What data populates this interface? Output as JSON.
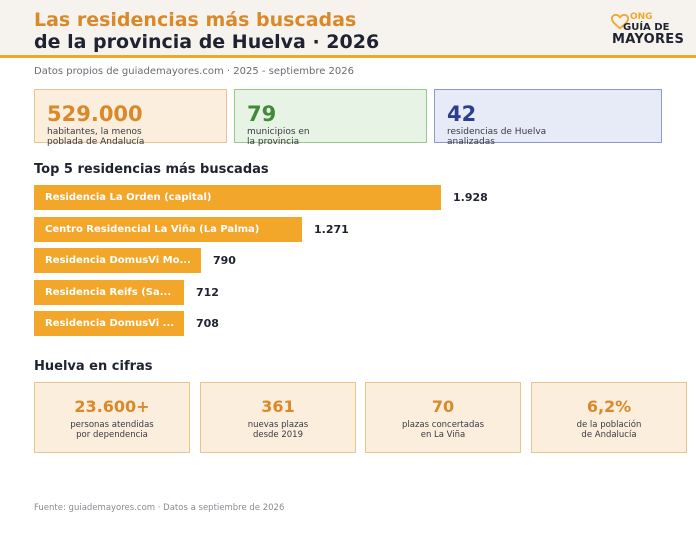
{
  "header": {
    "title_line1": "Las residencias más buscadas",
    "title_line2": "de la provincia de Huelva · 2026",
    "logo": {
      "ong": "ONG",
      "guia": "GUÍA DE",
      "mayores": "MAYORES",
      "icon": "heart-icon"
    }
  },
  "subtitle": "Datos propios de guiademayores.com · 2025 - septiembre 2026",
  "stats": [
    {
      "value": "529.000",
      "desc_line1": "habitantes, la menos",
      "desc_line2": "poblada de Andalucía"
    },
    {
      "value": "79",
      "desc_line1": "municipios en",
      "desc_line2": "la provincia"
    },
    {
      "value": "42",
      "desc_line1": "residencias de Huelva",
      "desc_line2": "analizadas"
    }
  ],
  "chart_data": {
    "type": "bar",
    "orientation": "horizontal",
    "title": "Top 5 residencias más buscadas",
    "categories": [
      "Residencia La Orden (capital)",
      "Centro Residencial La Viña (La Palma)",
      "Residencia DomusVi Mo...",
      "Residencia Reifs (Sa...",
      "Residencia DomusVi ..."
    ],
    "values": [
      1928,
      1271,
      790,
      712,
      708
    ],
    "value_labels": [
      "1.928",
      "1.271",
      "790",
      "712",
      "708"
    ],
    "bar_color": "#f2a62a"
  },
  "cifras": {
    "title": "Huelva en cifras",
    "cards": [
      {
        "value": "23.600+",
        "desc_line1": "personas atendidas",
        "desc_line2": "por dependencia"
      },
      {
        "value": "361",
        "desc_line1": "nuevas plazas",
        "desc_line2": "desde 2019"
      },
      {
        "value": "70",
        "desc_line1": "plazas concertadas",
        "desc_line2": "en La Viña"
      },
      {
        "value": "6,2%",
        "desc_line1": "de la población",
        "desc_line2": "de Andalucía"
      }
    ]
  },
  "footer": "Fuente: guiademayores.com · Datos a septiembre de 2026"
}
